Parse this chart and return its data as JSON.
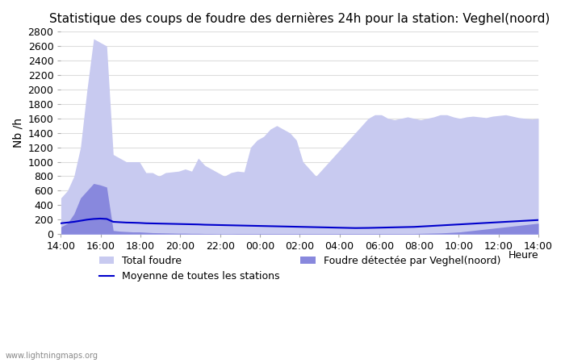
{
  "title": "Statistique des coups de foudre des dernières 24h pour la station: Veghel(noord)",
  "ylabel": "Nb /h",
  "xlabel": "Heure",
  "watermark": "www.lightningmaps.org",
  "ylim": [
    0,
    2800
  ],
  "yticks": [
    0,
    200,
    400,
    600,
    800,
    1000,
    1200,
    1400,
    1600,
    1800,
    2000,
    2200,
    2400,
    2600,
    2800
  ],
  "xtick_labels": [
    "14:00",
    "16:00",
    "18:00",
    "20:00",
    "22:00",
    "00:00",
    "02:00",
    "04:00",
    "06:00",
    "08:00",
    "10:00",
    "12:00",
    "14:00"
  ],
  "color_total": "#c8caf0",
  "color_veghel": "#8888dd",
  "color_moyenne": "#0000cc",
  "legend_total": "Total foudre",
  "legend_veghel": "Foudre détectée par Veghel(noord)",
  "legend_moyenne": "Moyenne de toutes les stations",
  "background_color": "#ffffff",
  "grid_color": "#dddddd",
  "total_foudre": [
    500,
    600,
    800,
    1200,
    2000,
    2700,
    2650,
    2600,
    1100,
    1050,
    1000,
    1000,
    1000,
    850,
    850,
    800,
    850,
    860,
    870,
    900,
    870,
    1050,
    950,
    900,
    850,
    800,
    850,
    870,
    860,
    1200,
    1300,
    1350,
    1450,
    1500,
    1450,
    1400,
    1300,
    1000,
    900,
    800,
    900,
    1000,
    1100,
    1200,
    1300,
    1400,
    1500,
    1600,
    1650,
    1650,
    1600,
    1580,
    1600,
    1620,
    1600,
    1580,
    1600,
    1620,
    1650,
    1650,
    1620,
    1600,
    1620,
    1630,
    1620,
    1610,
    1630,
    1640,
    1650,
    1630,
    1610,
    1600,
    1590,
    1600
  ],
  "veghel_foudre": [
    100,
    150,
    280,
    500,
    600,
    700,
    680,
    650,
    50,
    40,
    35,
    30,
    30,
    25,
    20,
    18,
    16,
    14,
    12,
    12,
    10,
    10,
    8,
    8,
    7,
    7,
    7,
    8,
    8,
    8,
    8,
    8,
    8,
    8,
    8,
    8,
    8,
    8,
    8,
    8,
    8,
    8,
    8,
    8,
    8,
    8,
    8,
    8,
    8,
    8,
    8,
    8,
    8,
    8,
    8,
    10,
    12,
    14,
    16,
    20,
    25,
    30,
    40,
    50,
    60,
    70,
    80,
    90,
    100,
    110,
    120,
    130,
    140,
    150
  ],
  "moyenne": [
    150,
    160,
    170,
    185,
    200,
    210,
    215,
    210,
    170,
    165,
    160,
    158,
    155,
    150,
    148,
    146,
    144,
    142,
    140,
    138,
    136,
    134,
    130,
    128,
    126,
    124,
    122,
    120,
    118,
    116,
    114,
    112,
    110,
    108,
    106,
    104,
    102,
    100,
    98,
    96,
    94,
    92,
    90,
    88,
    86,
    84,
    85,
    86,
    88,
    90,
    92,
    94,
    96,
    98,
    100,
    105,
    110,
    115,
    120,
    125,
    130,
    135,
    140,
    145,
    150,
    155,
    160,
    165,
    170,
    175,
    180,
    185,
    190,
    195
  ]
}
